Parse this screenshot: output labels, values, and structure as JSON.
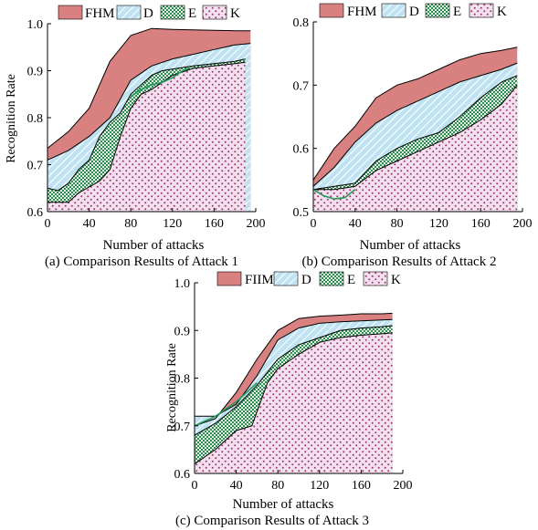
{
  "colors": {
    "FHM": "#d98080",
    "D": "#bfe3f2",
    "D_stripe": "#ffffff",
    "E": "#2f8d52",
    "E_bg": "#e3f0e6",
    "K": "#f3e1ef",
    "K_dot": "#a0306e",
    "curve": "#1f9a5a"
  },
  "chart_data": [
    {
      "type": "area",
      "caption": "(a) Comparison Results of Attack 1",
      "xlabel": "Number of attacks",
      "ylabel": "Recognition Rate",
      "xlim": [
        0,
        200
      ],
      "ylim": [
        0.6,
        1.0
      ],
      "xticks": [
        0,
        40,
        80,
        120,
        160,
        200
      ],
      "yticks": [
        0.6,
        0.7,
        0.8,
        0.9,
        1.0
      ],
      "ytick_labels": [
        "0.6",
        "0.7",
        "0.8",
        "0.9",
        "1.0"
      ],
      "legend": [
        "FHM",
        "D",
        "E",
        "K"
      ],
      "legend_position": "top",
      "grid": false,
      "series": [
        {
          "name": "FHM",
          "points": [
            [
              0,
              0.735
            ],
            [
              20,
              0.77
            ],
            [
              40,
              0.82
            ],
            [
              60,
              0.92
            ],
            [
              80,
              0.975
            ],
            [
              100,
              0.99
            ],
            [
              120,
              0.988
            ],
            [
              140,
              0.987
            ],
            [
              160,
              0.986
            ],
            [
              180,
              0.985
            ],
            [
              195,
              0.985
            ]
          ]
        },
        {
          "name": "D",
          "points": [
            [
              0,
              0.71
            ],
            [
              20,
              0.73
            ],
            [
              40,
              0.76
            ],
            [
              60,
              0.8
            ],
            [
              80,
              0.88
            ],
            [
              100,
              0.91
            ],
            [
              120,
              0.925
            ],
            [
              140,
              0.935
            ],
            [
              160,
              0.945
            ],
            [
              180,
              0.955
            ],
            [
              195,
              0.958
            ]
          ]
        },
        {
          "name": "E",
          "points": [
            [
              0,
              0.65
            ],
            [
              10,
              0.645
            ],
            [
              20,
              0.66
            ],
            [
              30,
              0.69
            ],
            [
              40,
              0.71
            ],
            [
              50,
              0.76
            ],
            [
              60,
              0.79
            ],
            [
              70,
              0.81
            ],
            [
              80,
              0.85
            ],
            [
              90,
              0.87
            ],
            [
              100,
              0.89
            ],
            [
              110,
              0.9
            ],
            [
              140,
              0.91
            ],
            [
              160,
              0.915
            ],
            [
              180,
              0.92
            ],
            [
              190,
              0.925
            ]
          ]
        },
        {
          "name": "K",
          "points": [
            [
              0,
              0.62
            ],
            [
              20,
              0.62
            ],
            [
              30,
              0.64
            ],
            [
              50,
              0.665
            ],
            [
              60,
              0.69
            ],
            [
              70,
              0.76
            ],
            [
              80,
              0.82
            ],
            [
              90,
              0.85
            ],
            [
              100,
              0.86
            ],
            [
              120,
              0.89
            ],
            [
              140,
              0.905
            ],
            [
              160,
              0.91
            ],
            [
              180,
              0.915
            ],
            [
              190,
              0.918
            ]
          ]
        }
      ],
      "extra_line": {
        "points": [
          [
            80,
            0.845
          ],
          [
            90,
            0.86
          ],
          [
            100,
            0.87
          ],
          [
            110,
            0.875
          ],
          [
            120,
            0.885
          ],
          [
            130,
            0.9
          ],
          [
            135,
            0.905
          ]
        ]
      }
    },
    {
      "type": "area",
      "caption": "(b) Comparison Results of Attack 2",
      "xlabel": "Number of attacks",
      "ylabel": "",
      "xlim": [
        0,
        200
      ],
      "ylim": [
        0.5,
        0.8
      ],
      "xticks": [
        0,
        40,
        80,
        120,
        160,
        200
      ],
      "yticks": [
        0.5,
        0.6,
        0.7,
        0.8
      ],
      "ytick_labels": [
        "0.5",
        "0.6",
        "0.7",
        "0.8"
      ],
      "legend": [
        "FHM",
        "D",
        "E",
        "K"
      ],
      "legend_position": "top",
      "grid": false,
      "series": [
        {
          "name": "FHM",
          "points": [
            [
              0,
              0.55
            ],
            [
              20,
              0.6
            ],
            [
              40,
              0.635
            ],
            [
              60,
              0.68
            ],
            [
              80,
              0.7
            ],
            [
              100,
              0.71
            ],
            [
              120,
              0.725
            ],
            [
              140,
              0.74
            ],
            [
              160,
              0.75
            ],
            [
              180,
              0.755
            ],
            [
              195,
              0.76
            ]
          ]
        },
        {
          "name": "D",
          "points": [
            [
              0,
              0.54
            ],
            [
              20,
              0.57
            ],
            [
              40,
              0.61
            ],
            [
              60,
              0.64
            ],
            [
              80,
              0.66
            ],
            [
              100,
              0.675
            ],
            [
              120,
              0.69
            ],
            [
              140,
              0.705
            ],
            [
              160,
              0.715
            ],
            [
              180,
              0.725
            ],
            [
              195,
              0.735
            ]
          ]
        },
        {
          "name": "E",
          "points": [
            [
              0,
              0.535
            ],
            [
              20,
              0.54
            ],
            [
              40,
              0.545
            ],
            [
              60,
              0.58
            ],
            [
              80,
              0.6
            ],
            [
              100,
              0.615
            ],
            [
              120,
              0.625
            ],
            [
              140,
              0.65
            ],
            [
              160,
              0.68
            ],
            [
              180,
              0.705
            ],
            [
              195,
              0.715
            ]
          ]
        },
        {
          "name": "K",
          "points": [
            [
              0,
              0.535
            ],
            [
              20,
              0.535
            ],
            [
              40,
              0.54
            ],
            [
              60,
              0.565
            ],
            [
              80,
              0.58
            ],
            [
              100,
              0.595
            ],
            [
              120,
              0.61
            ],
            [
              140,
              0.625
            ],
            [
              160,
              0.645
            ],
            [
              180,
              0.67
            ],
            [
              195,
              0.7
            ]
          ]
        }
      ],
      "extra_line": {
        "points": [
          [
            0,
            0.535
          ],
          [
            10,
            0.525
          ],
          [
            20,
            0.52
          ],
          [
            30,
            0.522
          ],
          [
            40,
            0.535
          ]
        ]
      }
    },
    {
      "type": "area",
      "caption": "(c) Comparison Results of Attack 3",
      "xlabel": "Number of attacks",
      "ylabel": "Recognition Rate",
      "xlim": [
        0,
        200
      ],
      "ylim": [
        0.6,
        1.0
      ],
      "xticks": [
        0,
        40,
        80,
        120,
        160,
        200
      ],
      "yticks": [
        0.6,
        0.7,
        0.8,
        0.9,
        1.0
      ],
      "ytick_labels": [
        "0.6",
        "0.7",
        "0.8",
        "0.9",
        "1.0"
      ],
      "legend": [
        "FIIM",
        "D",
        "E",
        "K"
      ],
      "legend_position": "top",
      "grid": false,
      "series": [
        {
          "name": "FIIM",
          "points": [
            [
              0,
              0.7
            ],
            [
              20,
              0.715
            ],
            [
              40,
              0.77
            ],
            [
              60,
              0.84
            ],
            [
              80,
              0.9
            ],
            [
              100,
              0.925
            ],
            [
              120,
              0.93
            ],
            [
              140,
              0.932
            ],
            [
              160,
              0.935
            ],
            [
              180,
              0.935
            ],
            [
              190,
              0.936
            ]
          ]
        },
        {
          "name": "D",
          "points": [
            [
              0,
              0.72
            ],
            [
              20,
              0.72
            ],
            [
              40,
              0.745
            ],
            [
              60,
              0.805
            ],
            [
              80,
              0.88
            ],
            [
              100,
              0.905
            ],
            [
              120,
              0.915
            ],
            [
              140,
              0.918
            ],
            [
              160,
              0.92
            ],
            [
              180,
              0.922
            ],
            [
              190,
              0.923
            ]
          ]
        },
        {
          "name": "E",
          "points": [
            [
              0,
              0.68
            ],
            [
              20,
              0.705
            ],
            [
              40,
              0.74
            ],
            [
              60,
              0.785
            ],
            [
              80,
              0.84
            ],
            [
              100,
              0.87
            ],
            [
              120,
              0.885
            ],
            [
              140,
              0.9
            ],
            [
              160,
              0.905
            ],
            [
              180,
              0.908
            ],
            [
              190,
              0.91
            ]
          ]
        },
        {
          "name": "K",
          "points": [
            [
              0,
              0.62
            ],
            [
              20,
              0.65
            ],
            [
              40,
              0.69
            ],
            [
              55,
              0.7
            ],
            [
              70,
              0.79
            ],
            [
              80,
              0.82
            ],
            [
              100,
              0.85
            ],
            [
              120,
              0.875
            ],
            [
              140,
              0.885
            ],
            [
              160,
              0.89
            ],
            [
              180,
              0.893
            ],
            [
              190,
              0.895
            ]
          ]
        }
      ],
      "extra_line": {
        "points": [
          [
            0,
            0.7
          ],
          [
            20,
            0.72
          ],
          [
            40,
            0.75
          ],
          [
            60,
            0.79
          ]
        ]
      }
    }
  ]
}
